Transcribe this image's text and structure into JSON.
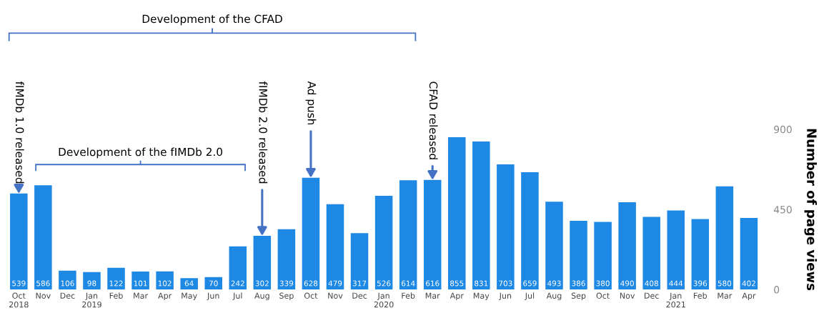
{
  "chart_data": {
    "type": "bar",
    "ylabel": "Number of page views",
    "categories": [
      "Oct\n2018",
      "Nov",
      "Dec",
      "Jan\n2019",
      "Feb",
      "Mar",
      "Apr",
      "May",
      "Jun",
      "Jul",
      "Aug",
      "Sep",
      "Oct",
      "Nov",
      "Dec",
      "Jan\n2020",
      "Feb",
      "Mar",
      "Apr",
      "May",
      "Jun",
      "Jul",
      "Aug",
      "Sep",
      "Oct",
      "Nov",
      "Dec",
      "Jan\n2021",
      "Feb",
      "Mar",
      "Apr"
    ],
    "values": [
      539,
      586,
      106,
      98,
      122,
      101,
      102,
      64,
      70,
      242,
      302,
      339,
      628,
      479,
      317,
      526,
      614,
      616,
      855,
      831,
      703,
      659,
      493,
      386,
      380,
      490,
      408,
      444,
      396,
      580,
      402
    ],
    "color": "#1e88e5",
    "data_labels": true,
    "ylim": [
      0,
      900
    ],
    "yticks": [
      0,
      450,
      900
    ],
    "grid": false,
    "annotations": [
      {
        "text": "fIMDb 1.0 released",
        "x": "Oct\n2018",
        "y": 539
      },
      {
        "text": "fIMDb 2.0 released",
        "x": "Aug",
        "y": 302
      },
      {
        "text": "Ad push",
        "y": 628
      },
      {
        "text": "CFAD released",
        "y": 616
      },
      "Development of the CFAD",
      "Development of the fIMDb 2.0"
    ]
  }
}
